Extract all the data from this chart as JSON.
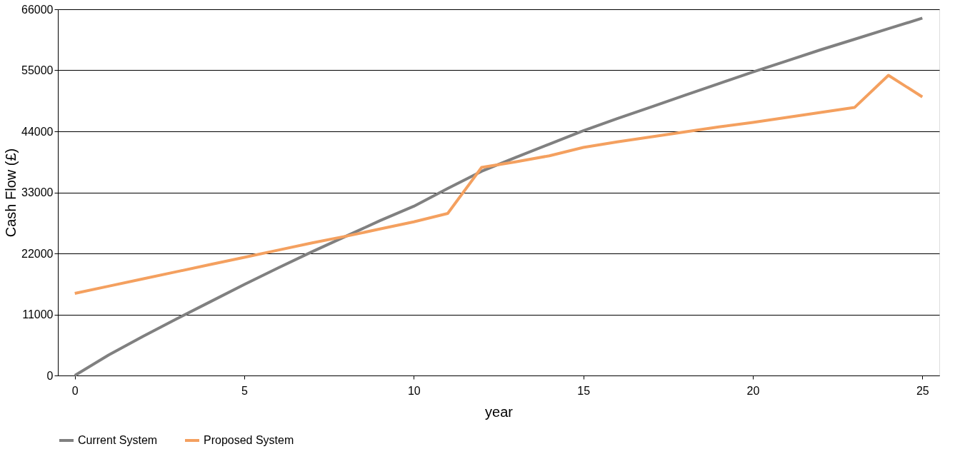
{
  "chart_data": {
    "type": "line",
    "xlabel": "year",
    "ylabel": "Cash Flow (£)",
    "x": [
      0,
      1,
      2,
      3,
      4,
      5,
      6,
      7,
      8,
      9,
      10,
      11,
      12,
      13,
      14,
      15,
      16,
      17,
      18,
      19,
      20,
      21,
      22,
      23,
      24,
      25
    ],
    "series": [
      {
        "name": "Current System",
        "color": "#808080",
        "values": [
          0,
          3700,
          7000,
          10200,
          13300,
          16400,
          19400,
          22300,
          25100,
          27900,
          30500,
          33700,
          36800,
          39300,
          41700,
          44100,
          46300,
          48400,
          50500,
          52600,
          54700,
          56700,
          58700,
          60600,
          62500,
          64400
        ]
      },
      {
        "name": "Proposed System",
        "color": "#f4a05f",
        "values": [
          14800,
          16100,
          17400,
          18700,
          20000,
          21300,
          22600,
          23900,
          25100,
          26400,
          27700,
          29200,
          37500,
          38500,
          39600,
          41100,
          42100,
          43000,
          43900,
          44800,
          45600,
          46500,
          47400,
          48300,
          54100,
          50200
        ]
      }
    ],
    "xlim": [
      -0.5,
      25.5
    ],
    "xticks": [
      0,
      5,
      10,
      15,
      20,
      25
    ],
    "ylim": [
      0,
      66000
    ],
    "yticks": [
      0,
      11000,
      22000,
      33000,
      44000,
      55000,
      66000
    ],
    "grid": "y",
    "legend": "bottom",
    "marker": "none",
    "line_style": "solid"
  }
}
